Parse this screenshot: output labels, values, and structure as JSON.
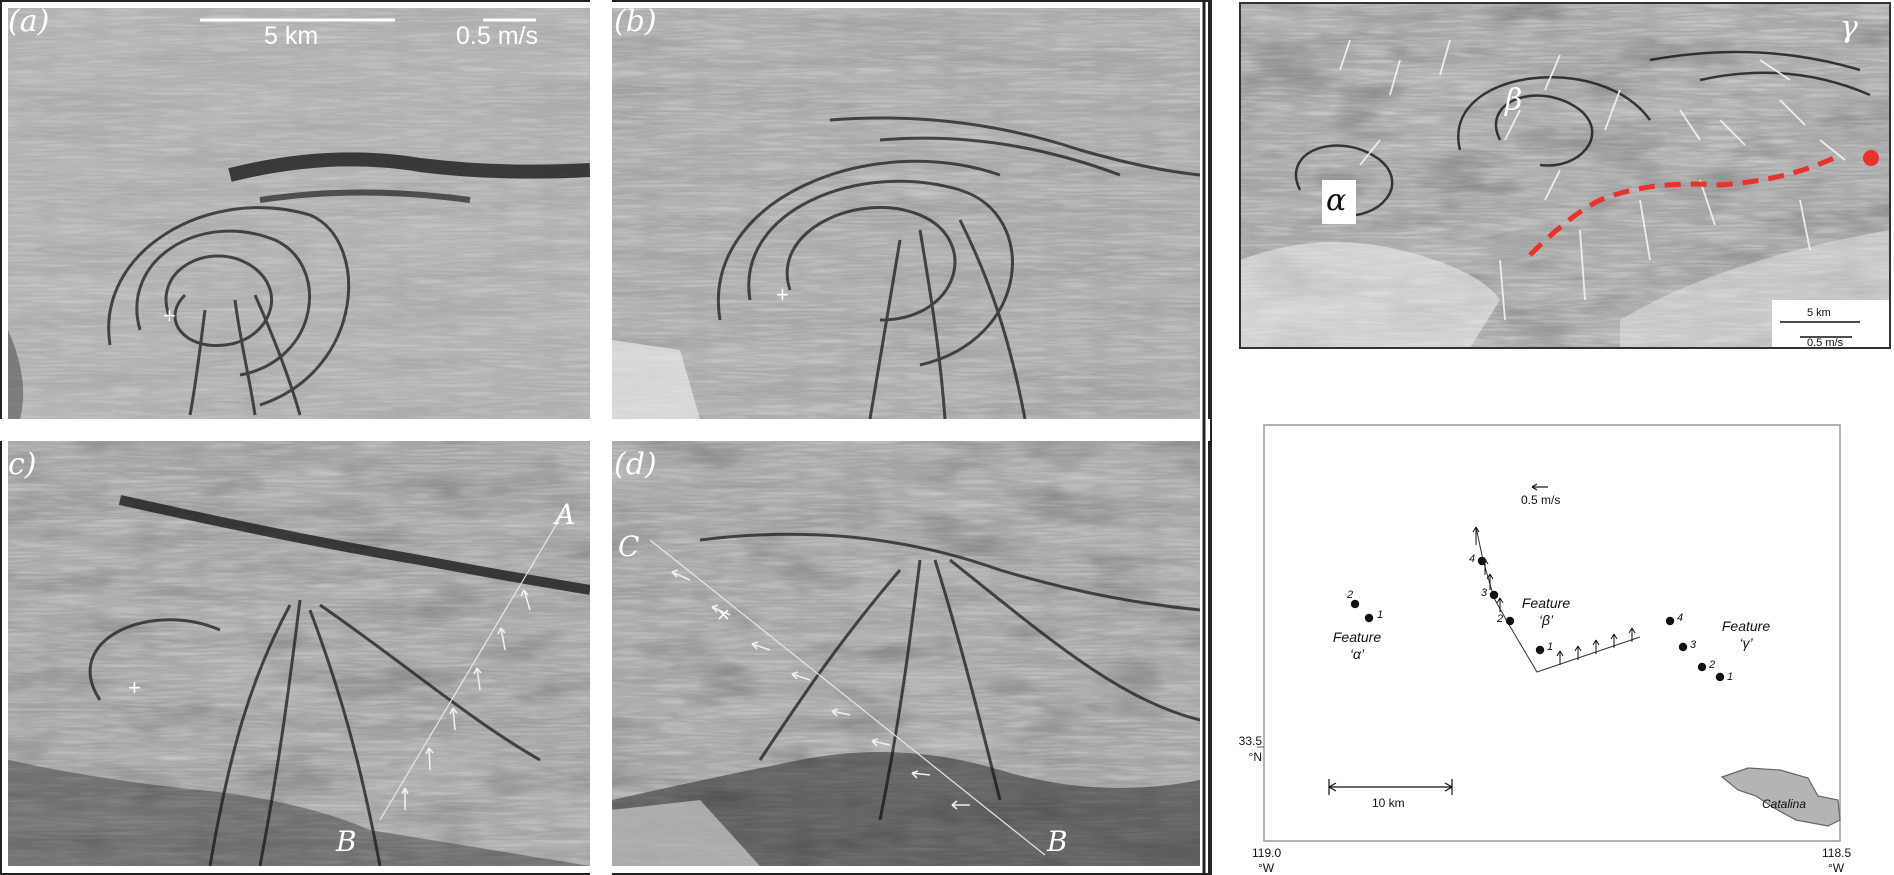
{
  "panels": {
    "a": {
      "label": "(a)"
    },
    "b": {
      "label": "(b)"
    },
    "c": {
      "label": "c)",
      "line_start": "A",
      "line_end": "B"
    },
    "d": {
      "label": "(d)",
      "line_start": "C",
      "line_end": "B"
    }
  },
  "scale_bars": {
    "distance": "5 km",
    "velocity": "0.5 m/s"
  },
  "overview": {
    "features": [
      "α",
      "β",
      "γ"
    ],
    "scale_distance": "5 km",
    "scale_velocity": "0.5 m/s",
    "front_color": "#e8322a"
  },
  "map": {
    "velocity_scale": "0.5 m/s",
    "distance_scale": "10 km",
    "lat_value": "33.5",
    "lat_unit": "°N",
    "lon_left_value": "119.0",
    "lon_left_unit": "°W",
    "lon_right_value": "118.5",
    "lon_right_unit": "°W",
    "island": "Catalina",
    "features": [
      {
        "title": "Feature",
        "name": "‘α’",
        "points": [
          "2",
          "1"
        ]
      },
      {
        "title": "Feature",
        "name": "‘β’",
        "points": [
          "4",
          "3",
          "2",
          "1"
        ]
      },
      {
        "title": "Feature",
        "name": "‘γ’",
        "points": [
          "4",
          "3",
          "2",
          "1"
        ]
      }
    ]
  }
}
